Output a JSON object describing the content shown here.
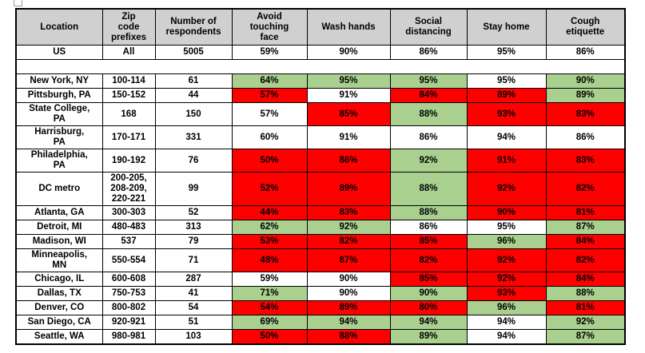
{
  "colors": {
    "green": "#A9D08E",
    "red": "#FF0000",
    "header_gray": "#D0D0D0",
    "border": "#000000"
  },
  "table": {
    "columns": [
      {
        "slug": "location",
        "label": "Location"
      },
      {
        "slug": "zip-code-prefixes",
        "label": "Zip\ncode\nprefixes"
      },
      {
        "slug": "number-of-respondents",
        "label": "Number of\nrespondents"
      },
      {
        "slug": "avoid-touching-face",
        "label": "Avoid\ntouching\nface"
      },
      {
        "slug": "wash-hands",
        "label": "Wash hands"
      },
      {
        "slug": "social-distancing",
        "label": "Social\ndistancing"
      },
      {
        "slug": "stay-home",
        "label": "Stay home"
      },
      {
        "slug": "cough-etiquette",
        "label": "Cough\netiquette"
      }
    ],
    "rows": [
      {
        "type": "data",
        "location": "US",
        "zip": "All",
        "respondents": "5005",
        "metrics": [
          {
            "value": "59%",
            "color": "white"
          },
          {
            "value": "90%",
            "color": "white"
          },
          {
            "value": "86%",
            "color": "white"
          },
          {
            "value": "95%",
            "color": "white"
          },
          {
            "value": "86%",
            "color": "white"
          }
        ]
      },
      {
        "type": "spacer"
      },
      {
        "type": "data",
        "location": "New York, NY",
        "zip": "100-114",
        "respondents": "61",
        "metrics": [
          {
            "value": "64%",
            "color": "green"
          },
          {
            "value": "95%",
            "color": "green"
          },
          {
            "value": "95%",
            "color": "green"
          },
          {
            "value": "95%",
            "color": "white"
          },
          {
            "value": "90%",
            "color": "green"
          }
        ]
      },
      {
        "type": "data",
        "location": "Pittsburgh, PA",
        "zip": "150-152",
        "respondents": "44",
        "metrics": [
          {
            "value": "57%",
            "color": "red"
          },
          {
            "value": "91%",
            "color": "white"
          },
          {
            "value": "84%",
            "color": "red"
          },
          {
            "value": "89%",
            "color": "red"
          },
          {
            "value": "89%",
            "color": "green"
          }
        ]
      },
      {
        "type": "data",
        "location": "State College,\nPA",
        "zip": "168",
        "respondents": "150",
        "metrics": [
          {
            "value": "57%",
            "color": "white"
          },
          {
            "value": "85%",
            "color": "red"
          },
          {
            "value": "88%",
            "color": "green"
          },
          {
            "value": "93%",
            "color": "red"
          },
          {
            "value": "83%",
            "color": "red"
          }
        ]
      },
      {
        "type": "data",
        "location": "Harrisburg,\nPA",
        "zip": "170-171",
        "respondents": "331",
        "metrics": [
          {
            "value": "60%",
            "color": "white"
          },
          {
            "value": "91%",
            "color": "white"
          },
          {
            "value": "86%",
            "color": "white"
          },
          {
            "value": "94%",
            "color": "white"
          },
          {
            "value": "86%",
            "color": "white"
          }
        ]
      },
      {
        "type": "data",
        "location": "Philadelphia,\nPA",
        "zip": "190-192",
        "respondents": "76",
        "metrics": [
          {
            "value": "50%",
            "color": "red"
          },
          {
            "value": "86%",
            "color": "red"
          },
          {
            "value": "92%",
            "color": "green"
          },
          {
            "value": "91%",
            "color": "red"
          },
          {
            "value": "83%",
            "color": "red"
          }
        ]
      },
      {
        "type": "data",
        "location": "DC metro",
        "zip": "200-205,\n208-209,\n220-221",
        "respondents": "99",
        "metrics": [
          {
            "value": "52%",
            "color": "red"
          },
          {
            "value": "89%",
            "color": "red"
          },
          {
            "value": "88%",
            "color": "green"
          },
          {
            "value": "92%",
            "color": "red"
          },
          {
            "value": "82%",
            "color": "red"
          }
        ]
      },
      {
        "type": "data",
        "location": "Atlanta, GA",
        "zip": "300-303",
        "respondents": "52",
        "metrics": [
          {
            "value": "44%",
            "color": "red"
          },
          {
            "value": "83%",
            "color": "red"
          },
          {
            "value": "88%",
            "color": "green"
          },
          {
            "value": "90%",
            "color": "red"
          },
          {
            "value": "81%",
            "color": "red"
          }
        ]
      },
      {
        "type": "data",
        "location": "Detroit, MI",
        "zip": "480-483",
        "respondents": "313",
        "metrics": [
          {
            "value": "62%",
            "color": "green"
          },
          {
            "value": "92%",
            "color": "green"
          },
          {
            "value": "86%",
            "color": "white"
          },
          {
            "value": "95%",
            "color": "white"
          },
          {
            "value": "87%",
            "color": "green"
          }
        ]
      },
      {
        "type": "data",
        "location": "Madison, WI",
        "zip": "537",
        "respondents": "79",
        "metrics": [
          {
            "value": "53%",
            "color": "red"
          },
          {
            "value": "82%",
            "color": "red"
          },
          {
            "value": "85%",
            "color": "red"
          },
          {
            "value": "96%",
            "color": "green"
          },
          {
            "value": "84%",
            "color": "red"
          }
        ]
      },
      {
        "type": "data",
        "location": "Minneapolis,\nMN",
        "zip": "550-554",
        "respondents": "71",
        "metrics": [
          {
            "value": "48%",
            "color": "red"
          },
          {
            "value": "87%",
            "color": "red"
          },
          {
            "value": "82%",
            "color": "red"
          },
          {
            "value": "92%",
            "color": "red"
          },
          {
            "value": "82%",
            "color": "red"
          }
        ]
      },
      {
        "type": "data",
        "location": "Chicago, IL",
        "zip": "600-608",
        "respondents": "287",
        "metrics": [
          {
            "value": "59%",
            "color": "white"
          },
          {
            "value": "90%",
            "color": "white"
          },
          {
            "value": "85%",
            "color": "red"
          },
          {
            "value": "92%",
            "color": "red"
          },
          {
            "value": "84%",
            "color": "red"
          }
        ]
      },
      {
        "type": "data",
        "location": "Dallas, TX",
        "zip": "750-753",
        "respondents": "41",
        "metrics": [
          {
            "value": "71%",
            "color": "green"
          },
          {
            "value": "90%",
            "color": "white"
          },
          {
            "value": "90%",
            "color": "green"
          },
          {
            "value": "93%",
            "color": "red"
          },
          {
            "value": "88%",
            "color": "green"
          }
        ]
      },
      {
        "type": "data",
        "location": "Denver, CO",
        "zip": "800-802",
        "respondents": "54",
        "metrics": [
          {
            "value": "54%",
            "color": "red"
          },
          {
            "value": "89%",
            "color": "red"
          },
          {
            "value": "80%",
            "color": "red"
          },
          {
            "value": "96%",
            "color": "green"
          },
          {
            "value": "81%",
            "color": "red"
          }
        ]
      },
      {
        "type": "data",
        "location": "San Diego, CA",
        "zip": "920-921",
        "respondents": "51",
        "metrics": [
          {
            "value": "69%",
            "color": "green"
          },
          {
            "value": "94%",
            "color": "green"
          },
          {
            "value": "94%",
            "color": "green"
          },
          {
            "value": "94%",
            "color": "white"
          },
          {
            "value": "92%",
            "color": "green"
          }
        ]
      },
      {
        "type": "data",
        "location": "Seattle, WA",
        "zip": "980-981",
        "respondents": "103",
        "metrics": [
          {
            "value": "50%",
            "color": "red"
          },
          {
            "value": "88%",
            "color": "red"
          },
          {
            "value": "89%",
            "color": "green"
          },
          {
            "value": "94%",
            "color": "white"
          },
          {
            "value": "87%",
            "color": "green"
          }
        ]
      }
    ]
  }
}
